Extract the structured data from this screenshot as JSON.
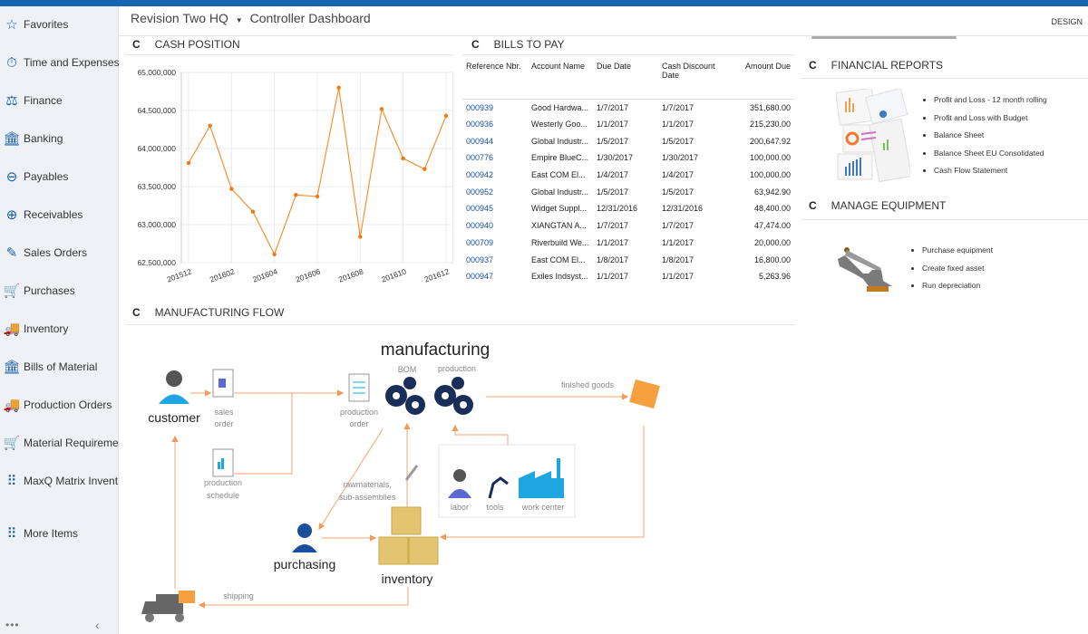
{
  "header": {
    "company": "Revision Two HQ",
    "dropdown_icon": "caret-down",
    "dashboard": "Controller Dashboard",
    "design_label": "DESIGN"
  },
  "sidebar": {
    "items": [
      {
        "label": "Favorites",
        "icon": "☆"
      },
      {
        "label": "Time and Expenses",
        "icon": "⏱"
      },
      {
        "label": "Finance",
        "icon": "⚖"
      },
      {
        "label": "Banking",
        "icon": "🏛"
      },
      {
        "label": "Payables",
        "icon": "⊖"
      },
      {
        "label": "Receivables",
        "icon": "⊕"
      },
      {
        "label": "Sales Orders",
        "icon": "✎"
      },
      {
        "label": "Purchases",
        "icon": "🛒"
      },
      {
        "label": "Inventory",
        "icon": "🚚"
      },
      {
        "label": "Bills of Material",
        "icon": "🏛"
      },
      {
        "label": "Production Orders",
        "icon": "🚚"
      },
      {
        "label": "Material Requireme...",
        "icon": "🛒"
      },
      {
        "label": "MaxQ Matrix Invent...",
        "icon": "⠿"
      },
      {
        "label": "More Items",
        "icon": "⠿"
      }
    ],
    "more_icon": "•••",
    "collapse_icon": "‹"
  },
  "cash_position": {
    "title": "CASH POSITION",
    "refresh_icon": "C"
  },
  "chart_data": {
    "type": "line",
    "categories": [
      "201512",
      "201601",
      "201602",
      "201603",
      "201604",
      "201605",
      "201606",
      "201607",
      "201608",
      "201609",
      "201610",
      "201611",
      "201612"
    ],
    "values": [
      63810000,
      64300000,
      63470000,
      63170000,
      62610000,
      63390000,
      63370000,
      64800000,
      62840000,
      64520000,
      63870000,
      63730000,
      64430000
    ],
    "x_tick_labels": [
      "201512",
      "201602",
      "201604",
      "201606",
      "201608",
      "201610",
      "201612"
    ],
    "y_tick_labels": [
      "62,500,000",
      "63,000,000",
      "63,500,000",
      "64,000,000",
      "64,500,000",
      "65,000,000"
    ],
    "ylim": [
      62500000,
      65000000
    ],
    "grid": true,
    "color": "#f39233"
  },
  "bills": {
    "title": "BILLS TO PAY",
    "refresh_icon": "C",
    "columns": [
      "Reference Nbr.",
      "Account Name",
      "Due Date",
      "Cash Discount Date",
      "Amount Due"
    ],
    "rows": [
      [
        "000939",
        "Good Hardwa...",
        "1/7/2017",
        "1/7/2017",
        "351,680.00"
      ],
      [
        "000936",
        "Westerly Goo...",
        "1/1/2017",
        "1/1/2017",
        "215,230.00"
      ],
      [
        "000944",
        "Global Industr...",
        "1/5/2017",
        "1/5/2017",
        "200,647.92"
      ],
      [
        "000776",
        "Empire BlueC...",
        "1/30/2017",
        "1/30/2017",
        "100,000.00"
      ],
      [
        "000942",
        "East COM El...",
        "1/4/2017",
        "1/4/2017",
        "100,000.00"
      ],
      [
        "000952",
        "Global Industr...",
        "1/5/2017",
        "1/5/2017",
        "63,942.90"
      ],
      [
        "000945",
        "Widget Suppl...",
        "12/31/2016",
        "12/31/2016",
        "48,400.00"
      ],
      [
        "000940",
        "XIANGTAN A...",
        "1/7/2017",
        "1/7/2017",
        "47,474.00"
      ],
      [
        "000709",
        "Riverbuild We...",
        "1/1/2017",
        "1/1/2017",
        "20,000.00"
      ],
      [
        "000937",
        "East COM El...",
        "1/8/2017",
        "1/8/2017",
        "16,800.00"
      ],
      [
        "000947",
        "Exiles Indsyst...",
        "1/1/2017",
        "1/1/2017",
        "5,263.96"
      ]
    ]
  },
  "financial_reports": {
    "title": "FINANCIAL REPORTS",
    "refresh_icon": "C",
    "items": [
      "Profit and Loss - 12 month rolling",
      "Profit and Loss with Budget",
      "Balance Sheet",
      "Balance Sheet EU Consolidated",
      "Cash Flow Statement"
    ]
  },
  "manage_equipment": {
    "title": "MANAGE EQUIPMENT",
    "refresh_icon": "C",
    "items": [
      "Purchase equipment",
      "Create fixed asset",
      "Run depreciation"
    ]
  },
  "manufacturing_flow": {
    "title": "MANUFACTURING FLOW",
    "refresh_icon": "C",
    "labels": {
      "manufacturing": "manufacturing",
      "bom": "BOM",
      "production": "production",
      "customer": "customer",
      "sales": "sales",
      "order": "order",
      "production_order_1": "production",
      "production_order_2": "order",
      "production_schedule_1": "production",
      "production_schedule_2": "schedule",
      "finished_goods": "finished goods",
      "raw_1": "rawmaterials,",
      "raw_2": "sub-assemblies",
      "labor": "labor",
      "tools": "tools",
      "work_center": "work center",
      "purchasing": "purchasing",
      "inventory": "inventory",
      "shipping": "shipping"
    }
  }
}
